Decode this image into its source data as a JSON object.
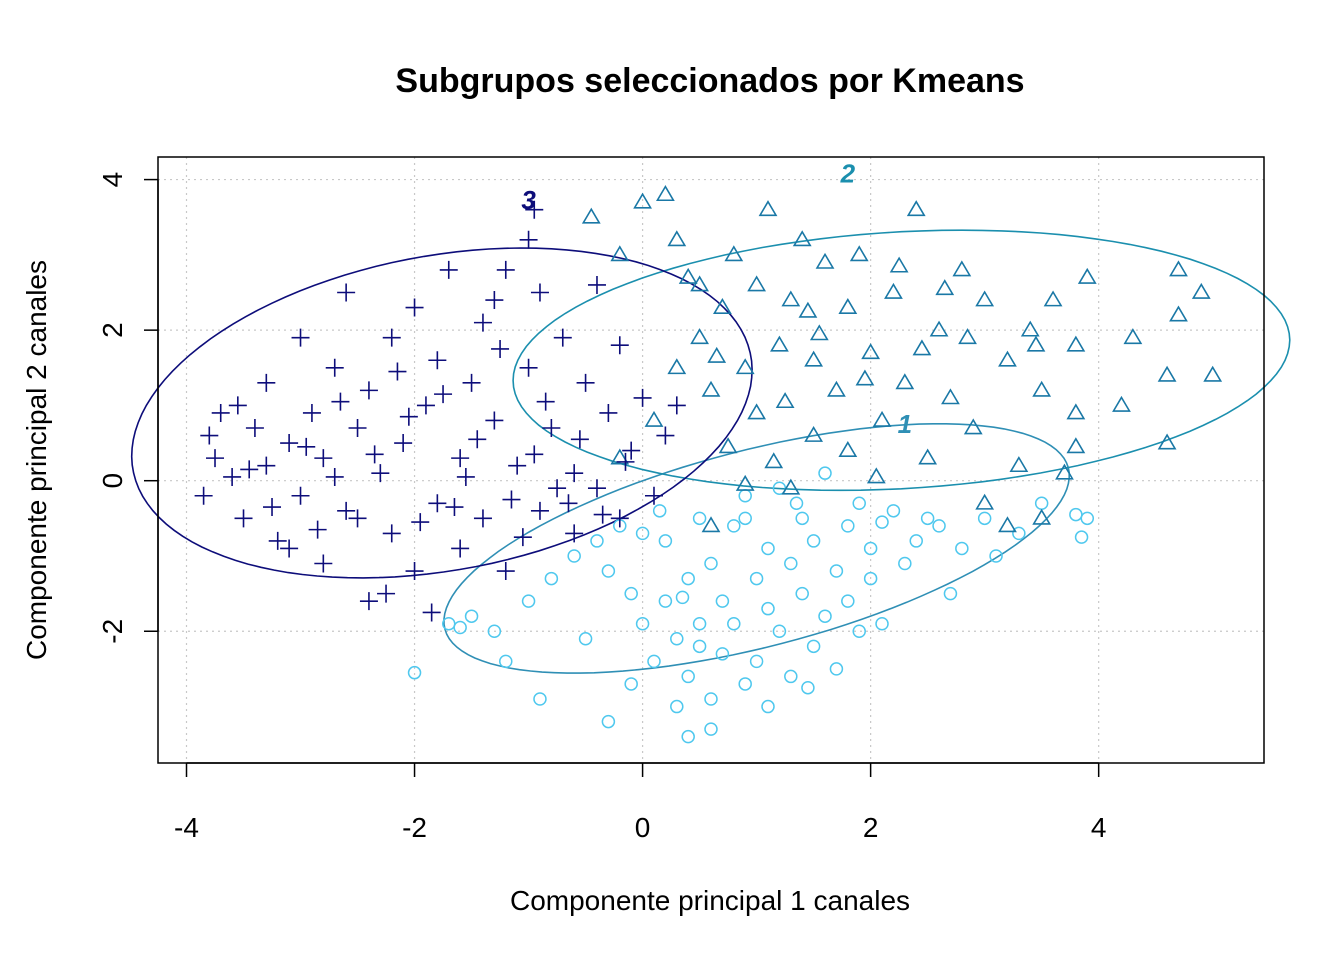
{
  "chart_data": {
    "type": "scatter",
    "title": "Subgrupos seleccionados por Kmeans",
    "xlabel": "Componente principal 1 canales",
    "ylabel": "Componente principal 2 canales",
    "xlim": [
      -4.25,
      5.45
    ],
    "ylim": [
      -3.75,
      4.3
    ],
    "xticks": [
      -4,
      -2,
      0,
      2,
      4
    ],
    "yticks": [
      -2,
      0,
      2,
      4
    ],
    "grid": true,
    "colors": {
      "cluster1": "#4fc8ee",
      "cluster2": "#1a78a6",
      "cluster3": "#0d0d7a",
      "ellipse1": "#2f8fb5",
      "ellipse2": "#1b8fae",
      "ellipse3": "#0d0d7a"
    },
    "ellipses": [
      {
        "label": "1",
        "center": [
          1.0,
          -0.9
        ],
        "semi_major": 2.95,
        "semi_minor": 1.25,
        "angle_deg": 24,
        "label_pos": [
          2.3,
          0.75
        ]
      },
      {
        "label": "2",
        "center": [
          2.27,
          1.6
        ],
        "semi_major": 3.42,
        "semi_minor": 1.7,
        "angle_deg": 6,
        "label_pos": [
          1.8,
          4.08
        ]
      },
      {
        "label": "3",
        "center": [
          -1.76,
          0.9
        ],
        "semi_major": 2.85,
        "semi_minor": 2.02,
        "angle_deg": 25,
        "label_pos": [
          -1.0,
          3.73
        ]
      }
    ],
    "series": [
      {
        "name": "1",
        "marker": "circle",
        "points": [
          [
            -2.0,
            -2.55
          ],
          [
            -1.6,
            -1.95
          ],
          [
            -1.5,
            -1.8
          ],
          [
            -1.3,
            -2.0
          ],
          [
            -1.0,
            -1.6
          ],
          [
            -0.8,
            -1.3
          ],
          [
            -0.6,
            -1.0
          ],
          [
            -0.4,
            -0.8
          ],
          [
            -0.3,
            -1.2
          ],
          [
            -0.2,
            -0.6
          ],
          [
            -0.1,
            -1.5
          ],
          [
            0.0,
            -1.9
          ],
          [
            0.0,
            -0.7
          ],
          [
            0.1,
            -2.4
          ],
          [
            0.2,
            -1.6
          ],
          [
            0.2,
            -0.8
          ],
          [
            0.3,
            -2.1
          ],
          [
            0.3,
            -3.0
          ],
          [
            0.4,
            -1.3
          ],
          [
            0.4,
            -2.6
          ],
          [
            0.5,
            -0.5
          ],
          [
            0.5,
            -1.9
          ],
          [
            0.6,
            -2.9
          ],
          [
            0.6,
            -1.1
          ],
          [
            0.7,
            -1.6
          ],
          [
            0.7,
            -2.3
          ],
          [
            0.8,
            -0.6
          ],
          [
            0.8,
            -1.9
          ],
          [
            0.9,
            -2.7
          ],
          [
            0.9,
            -0.2
          ],
          [
            1.0,
            -1.3
          ],
          [
            1.0,
            -2.4
          ],
          [
            1.1,
            -0.9
          ],
          [
            1.1,
            -1.7
          ],
          [
            1.2,
            -0.1
          ],
          [
            1.2,
            -2.0
          ],
          [
            1.3,
            -1.1
          ],
          [
            1.3,
            -2.6
          ],
          [
            1.4,
            -0.5
          ],
          [
            1.4,
            -1.5
          ],
          [
            1.5,
            -2.2
          ],
          [
            1.5,
            -0.8
          ],
          [
            1.6,
            -1.8
          ],
          [
            1.6,
            0.1
          ],
          [
            1.7,
            -1.2
          ],
          [
            1.7,
            -2.5
          ],
          [
            1.8,
            -0.6
          ],
          [
            1.8,
            -1.6
          ],
          [
            1.9,
            -2.0
          ],
          [
            1.9,
            -0.3
          ],
          [
            2.0,
            -1.3
          ],
          [
            2.0,
            -0.9
          ],
          [
            2.1,
            -1.9
          ],
          [
            2.2,
            -0.4
          ],
          [
            2.3,
            -1.1
          ],
          [
            2.4,
            -0.8
          ],
          [
            2.5,
            -0.5
          ],
          [
            2.6,
            -0.6
          ],
          [
            2.7,
            -1.5
          ],
          [
            2.8,
            -0.9
          ],
          [
            3.0,
            -0.5
          ],
          [
            3.1,
            -1.0
          ],
          [
            3.3,
            -0.7
          ],
          [
            3.5,
            -0.3
          ],
          [
            3.8,
            -0.45
          ],
          [
            3.85,
            -0.75
          ],
          [
            3.9,
            -0.5
          ],
          [
            -0.9,
            -2.9
          ],
          [
            -0.3,
            -3.2
          ],
          [
            0.4,
            -3.4
          ],
          [
            -0.5,
            -2.1
          ],
          [
            0.6,
            -3.3
          ],
          [
            1.1,
            -3.0
          ],
          [
            -1.2,
            -2.4
          ],
          [
            -1.7,
            -1.9
          ],
          [
            0.15,
            -0.4
          ],
          [
            0.9,
            -0.5
          ],
          [
            1.35,
            -0.3
          ],
          [
            2.1,
            -0.55
          ],
          [
            -0.1,
            -2.7
          ],
          [
            0.5,
            -2.2
          ],
          [
            1.45,
            -2.75
          ],
          [
            0.35,
            -1.55
          ]
        ]
      },
      {
        "name": "2",
        "marker": "triangle",
        "points": [
          [
            -0.45,
            3.5
          ],
          [
            -0.2,
            3.0
          ],
          [
            0.0,
            3.7
          ],
          [
            0.2,
            3.8
          ],
          [
            0.3,
            3.2
          ],
          [
            0.5,
            2.6
          ],
          [
            0.5,
            1.9
          ],
          [
            0.6,
            1.2
          ],
          [
            0.7,
            2.3
          ],
          [
            0.8,
            3.0
          ],
          [
            0.9,
            1.5
          ],
          [
            1.0,
            2.6
          ],
          [
            1.0,
            0.9
          ],
          [
            1.1,
            3.6
          ],
          [
            1.2,
            1.8
          ],
          [
            1.3,
            2.4
          ],
          [
            1.4,
            3.2
          ],
          [
            1.5,
            0.6
          ],
          [
            1.5,
            1.6
          ],
          [
            1.6,
            2.9
          ],
          [
            1.7,
            1.2
          ],
          [
            1.8,
            2.3
          ],
          [
            1.8,
            0.4
          ],
          [
            1.9,
            3.0
          ],
          [
            2.0,
            1.7
          ],
          [
            2.1,
            0.8
          ],
          [
            2.2,
            2.5
          ],
          [
            2.3,
            1.3
          ],
          [
            2.4,
            3.6
          ],
          [
            2.5,
            0.3
          ],
          [
            2.6,
            2.0
          ],
          [
            2.7,
            1.1
          ],
          [
            2.8,
            2.8
          ],
          [
            2.9,
            0.7
          ],
          [
            3.0,
            2.4
          ],
          [
            3.2,
            1.6
          ],
          [
            3.3,
            0.2
          ],
          [
            3.4,
            2.0
          ],
          [
            3.5,
            1.2
          ],
          [
            3.6,
            2.4
          ],
          [
            3.8,
            0.9
          ],
          [
            3.8,
            1.8
          ],
          [
            3.9,
            2.7
          ],
          [
            4.3,
            1.9
          ],
          [
            4.6,
            1.4
          ],
          [
            4.7,
            2.8
          ],
          [
            4.7,
            2.2
          ],
          [
            5.0,
            1.4
          ],
          [
            4.9,
            2.5
          ],
          [
            4.2,
            1.0
          ],
          [
            4.6,
            0.5
          ],
          [
            3.5,
            -0.5
          ],
          [
            3.2,
            -0.6
          ],
          [
            3.0,
            -0.3
          ],
          [
            3.8,
            0.45
          ],
          [
            3.7,
            0.1
          ],
          [
            1.3,
            -0.1
          ],
          [
            0.9,
            -0.05
          ],
          [
            0.6,
            -0.6
          ],
          [
            -0.2,
            0.3
          ],
          [
            0.1,
            0.8
          ],
          [
            0.3,
            1.5
          ],
          [
            0.4,
            2.7
          ],
          [
            0.65,
            1.65
          ],
          [
            0.75,
            0.45
          ],
          [
            1.15,
            0.25
          ],
          [
            1.45,
            2.25
          ],
          [
            2.05,
            0.05
          ],
          [
            2.45,
            1.75
          ],
          [
            2.65,
            2.55
          ],
          [
            2.85,
            1.9
          ],
          [
            1.95,
            1.35
          ],
          [
            1.25,
            1.05
          ],
          [
            2.25,
            2.85
          ],
          [
            1.55,
            1.95
          ],
          [
            3.45,
            1.8
          ]
        ]
      },
      {
        "name": "3",
        "marker": "plus",
        "points": [
          [
            -3.85,
            -0.2
          ],
          [
            -3.8,
            0.6
          ],
          [
            -3.75,
            0.3
          ],
          [
            -3.7,
            0.9
          ],
          [
            -3.6,
            0.05
          ],
          [
            -3.5,
            -0.5
          ],
          [
            -3.4,
            0.7
          ],
          [
            -3.3,
            0.2
          ],
          [
            -3.3,
            1.3
          ],
          [
            -3.2,
            -0.8
          ],
          [
            -3.1,
            0.5
          ],
          [
            -3.0,
            1.9
          ],
          [
            -3.0,
            -0.2
          ],
          [
            -2.9,
            0.9
          ],
          [
            -2.8,
            -1.1
          ],
          [
            -2.8,
            0.3
          ],
          [
            -2.7,
            1.5
          ],
          [
            -2.6,
            -0.4
          ],
          [
            -2.6,
            2.5
          ],
          [
            -2.5,
            0.7
          ],
          [
            -2.4,
            -1.6
          ],
          [
            -2.4,
            1.2
          ],
          [
            -2.3,
            0.1
          ],
          [
            -2.2,
            1.9
          ],
          [
            -2.2,
            -0.7
          ],
          [
            -2.1,
            0.5
          ],
          [
            -2.0,
            2.3
          ],
          [
            -2.0,
            -1.2
          ],
          [
            -1.9,
            1.0
          ],
          [
            -1.8,
            -0.3
          ],
          [
            -1.8,
            1.6
          ],
          [
            -1.7,
            2.8
          ],
          [
            -1.6,
            0.3
          ],
          [
            -1.6,
            -0.9
          ],
          [
            -1.5,
            1.3
          ],
          [
            -1.4,
            2.1
          ],
          [
            -1.4,
            -0.5
          ],
          [
            -1.3,
            0.8
          ],
          [
            -1.2,
            -1.2
          ],
          [
            -1.2,
            2.8
          ],
          [
            -1.1,
            0.2
          ],
          [
            -1.0,
            1.5
          ],
          [
            -1.0,
            3.2
          ],
          [
            -0.9,
            -0.4
          ],
          [
            -0.9,
            2.5
          ],
          [
            -0.8,
            0.7
          ],
          [
            -0.7,
            1.9
          ],
          [
            -0.6,
            -0.7
          ],
          [
            -0.6,
            0.1
          ],
          [
            -0.5,
            1.3
          ],
          [
            -0.4,
            -0.1
          ],
          [
            -0.4,
            2.6
          ],
          [
            -0.3,
            0.9
          ],
          [
            -0.2,
            -0.5
          ],
          [
            -0.2,
            1.8
          ],
          [
            -0.1,
            0.4
          ],
          [
            0.0,
            1.1
          ],
          [
            0.1,
            -0.2
          ],
          [
            0.2,
            0.6
          ],
          [
            0.3,
            1.0
          ],
          [
            -0.95,
            3.6
          ],
          [
            -1.3,
            2.4
          ],
          [
            -2.5,
            -0.5
          ],
          [
            -3.1,
            -0.9
          ],
          [
            -2.7,
            0.05
          ],
          [
            -2.05,
            0.85
          ],
          [
            -1.55,
            0.05
          ],
          [
            -1.05,
            -0.75
          ],
          [
            -0.75,
            -0.1
          ],
          [
            -1.85,
            -1.75
          ],
          [
            -2.25,
            -1.5
          ],
          [
            -3.55,
            1.0
          ],
          [
            -2.95,
            0.45
          ],
          [
            -3.25,
            -0.35
          ],
          [
            -1.45,
            0.55
          ],
          [
            -0.85,
            1.05
          ],
          [
            -0.15,
            0.25
          ],
          [
            -2.35,
            0.35
          ],
          [
            -1.75,
            1.15
          ],
          [
            -1.15,
            -0.25
          ],
          [
            -0.55,
            0.55
          ],
          [
            -2.65,
            1.05
          ],
          [
            -3.45,
            0.15
          ],
          [
            -1.95,
            -0.55
          ],
          [
            -0.35,
            -0.45
          ],
          [
            -2.85,
            -0.65
          ],
          [
            -1.65,
            -0.35
          ],
          [
            -0.95,
            0.35
          ],
          [
            -2.15,
            1.45
          ],
          [
            -1.25,
            1.75
          ],
          [
            -0.65,
            -0.3
          ]
        ]
      }
    ]
  }
}
